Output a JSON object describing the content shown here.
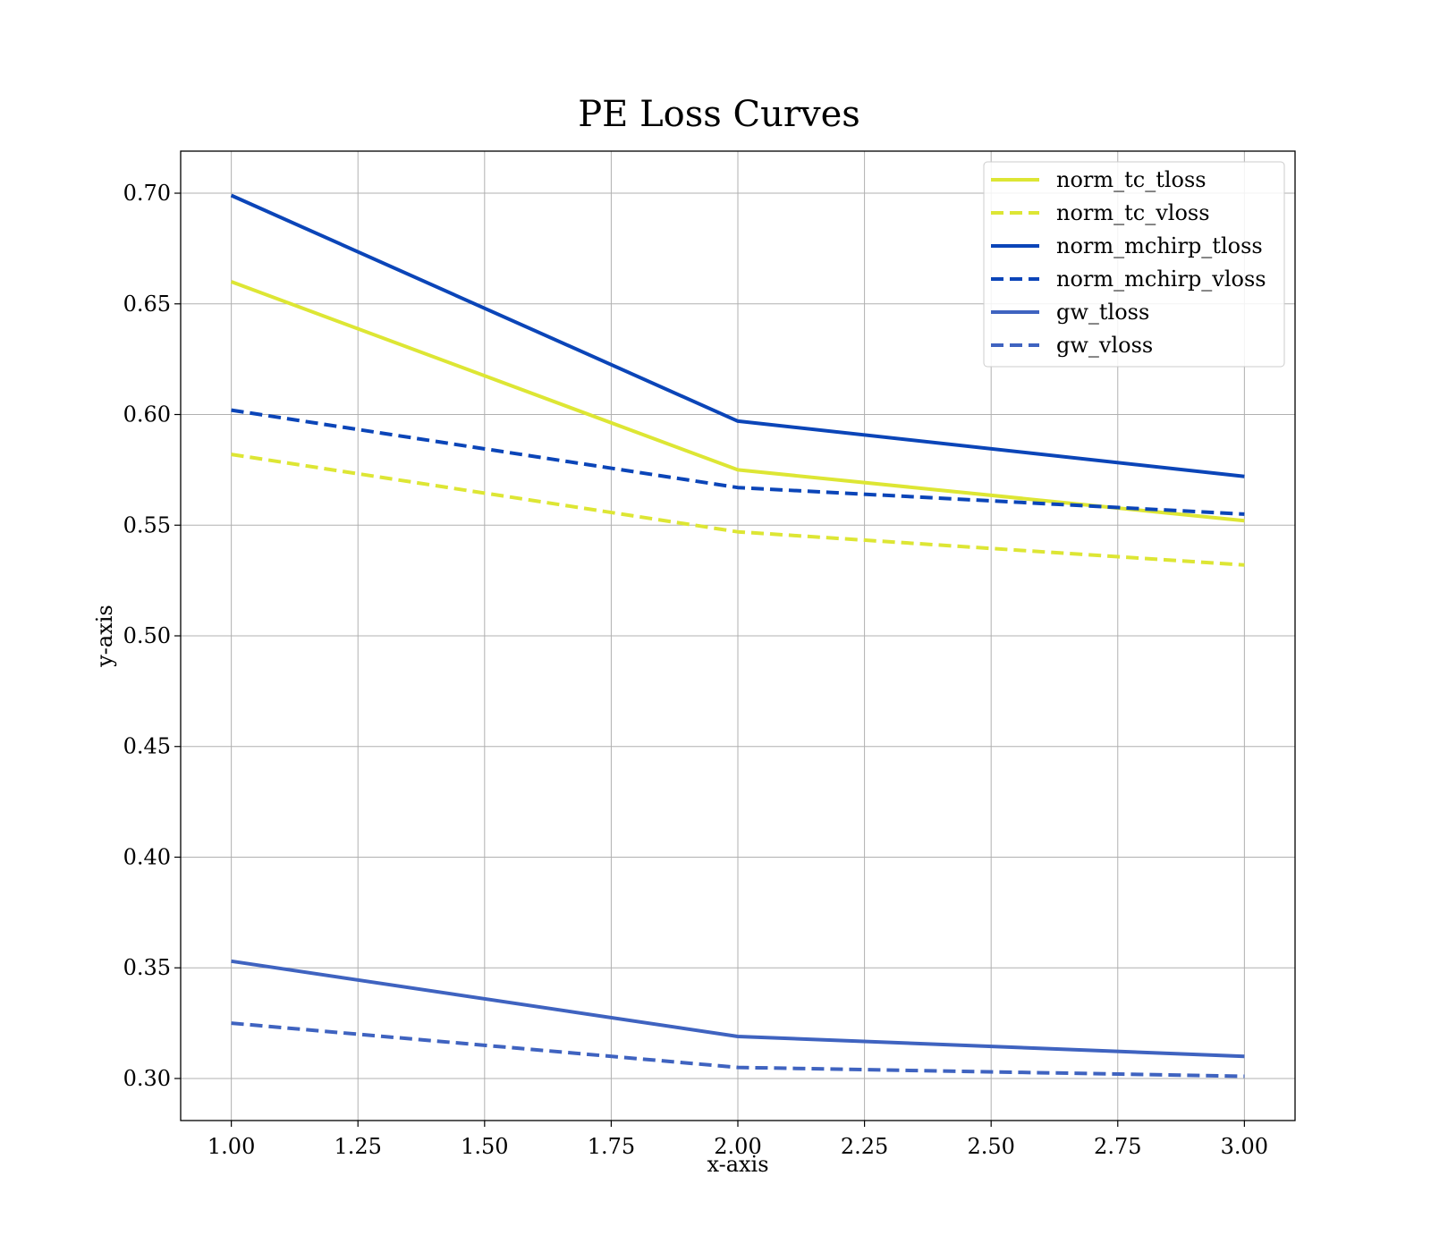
{
  "chart_data": {
    "type": "line",
    "title": "PE Loss Curves",
    "xlabel": "x-axis",
    "ylabel": "y-axis",
    "xlim": [
      0.9,
      3.1
    ],
    "ylim": [
      0.281,
      0.719
    ],
    "xticks": [
      "1.00",
      "1.25",
      "1.50",
      "1.75",
      "2.00",
      "2.25",
      "2.50",
      "2.75",
      "3.00"
    ],
    "yticks": [
      "0.30",
      "0.35",
      "0.40",
      "0.45",
      "0.50",
      "0.55",
      "0.60",
      "0.65",
      "0.70"
    ],
    "grid": true,
    "legend_position": "top-right",
    "x": [
      1,
      2,
      3
    ],
    "series": [
      {
        "name": "norm_tc_tloss",
        "values": [
          0.66,
          0.575,
          0.552
        ],
        "color": "#dde634",
        "style": "solid"
      },
      {
        "name": "norm_tc_vloss",
        "values": [
          0.582,
          0.547,
          0.532
        ],
        "color": "#dde634",
        "style": "dashed"
      },
      {
        "name": "norm_mchirp_tloss",
        "values": [
          0.699,
          0.597,
          0.572
        ],
        "color": "#0b45b8",
        "style": "solid"
      },
      {
        "name": "norm_mchirp_vloss",
        "values": [
          0.602,
          0.567,
          0.555
        ],
        "color": "#0b45b8",
        "style": "dashed"
      },
      {
        "name": "gw_tloss",
        "values": [
          0.353,
          0.319,
          0.31
        ],
        "color": "#3f63c0",
        "style": "solid"
      },
      {
        "name": "gw_vloss",
        "values": [
          0.325,
          0.305,
          0.301
        ],
        "color": "#3f63c0",
        "style": "dashed"
      }
    ]
  }
}
